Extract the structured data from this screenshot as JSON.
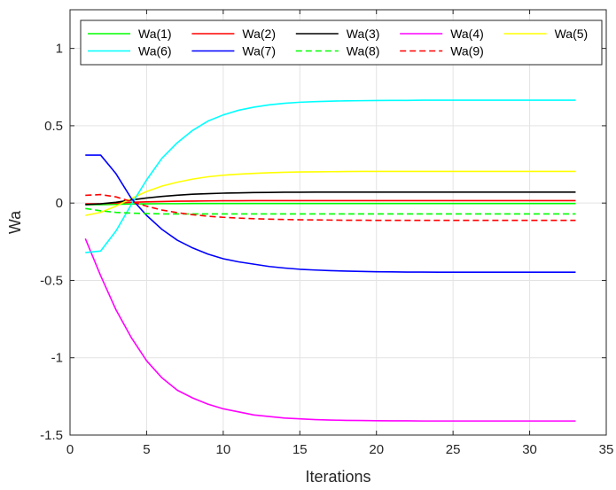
{
  "chart_data": {
    "type": "line",
    "xlabel": "Iterations",
    "ylabel": "Wa",
    "xlim": [
      0,
      35
    ],
    "ylim": [
      -1.5,
      1.25
    ],
    "xticks": [
      "0",
      "5",
      "10",
      "15",
      "20",
      "25",
      "30",
      "35"
    ],
    "yticks": [
      "-1.5",
      "-1",
      "-0.5",
      "0",
      "0.5",
      "1"
    ],
    "grid": true,
    "legend_position": "top",
    "x": [
      1,
      2,
      3,
      4,
      5,
      6,
      7,
      8,
      9,
      10,
      11,
      12,
      13,
      14,
      15,
      16,
      17,
      18,
      19,
      20,
      21,
      22,
      23,
      24,
      25,
      26,
      27,
      28,
      29,
      30,
      31,
      32,
      33
    ],
    "series": [
      {
        "name": "Wa(1)",
        "color": "#00ff00",
        "dash": "solid",
        "values": [
          -0.01,
          -0.01,
          -0.008,
          -0.006,
          -0.005,
          -0.004,
          -0.004,
          -0.003,
          -0.003,
          -0.003,
          -0.003,
          -0.003,
          -0.003,
          -0.003,
          -0.003,
          -0.003,
          -0.003,
          -0.003,
          -0.003,
          -0.003,
          -0.003,
          -0.003,
          -0.003,
          -0.003,
          -0.003,
          -0.003,
          -0.003,
          -0.003,
          -0.003,
          -0.003,
          -0.003,
          -0.003,
          -0.003
        ]
      },
      {
        "name": "Wa(2)",
        "color": "#ff0000",
        "dash": "solid",
        "values": [
          -0.005,
          -0.004,
          0.0,
          0.005,
          0.008,
          0.01,
          0.012,
          0.013,
          0.014,
          0.015,
          0.015,
          0.016,
          0.016,
          0.016,
          0.016,
          0.016,
          0.016,
          0.016,
          0.016,
          0.016,
          0.016,
          0.016,
          0.016,
          0.016,
          0.016,
          0.016,
          0.016,
          0.016,
          0.016,
          0.016,
          0.016,
          0.016,
          0.016
        ]
      },
      {
        "name": "Wa(3)",
        "color": "#000000",
        "dash": "solid",
        "values": [
          -0.01,
          -0.005,
          0.005,
          0.02,
          0.033,
          0.043,
          0.051,
          0.057,
          0.061,
          0.064,
          0.066,
          0.068,
          0.069,
          0.07,
          0.07,
          0.071,
          0.071,
          0.071,
          0.071,
          0.071,
          0.071,
          0.071,
          0.071,
          0.071,
          0.071,
          0.071,
          0.071,
          0.071,
          0.071,
          0.071,
          0.071,
          0.071,
          0.071
        ]
      },
      {
        "name": "Wa(4)",
        "color": "#ff00ff",
        "dash": "solid",
        "values": [
          -0.23,
          -0.47,
          -0.69,
          -0.87,
          -1.02,
          -1.13,
          -1.21,
          -1.26,
          -1.3,
          -1.33,
          -1.35,
          -1.37,
          -1.38,
          -1.39,
          -1.395,
          -1.4,
          -1.403,
          -1.405,
          -1.406,
          -1.407,
          -1.408,
          -1.408,
          -1.409,
          -1.409,
          -1.409,
          -1.409,
          -1.409,
          -1.409,
          -1.409,
          -1.409,
          -1.409,
          -1.409,
          -1.409
        ]
      },
      {
        "name": "Wa(5)",
        "color": "#ffff00",
        "dash": "solid",
        "values": [
          -0.08,
          -0.06,
          -0.02,
          0.03,
          0.075,
          0.11,
          0.135,
          0.155,
          0.17,
          0.18,
          0.187,
          0.192,
          0.196,
          0.199,
          0.201,
          0.202,
          0.203,
          0.204,
          0.205,
          0.205,
          0.205,
          0.205,
          0.205,
          0.205,
          0.205,
          0.205,
          0.205,
          0.205,
          0.205,
          0.205,
          0.205,
          0.205,
          0.205
        ]
      },
      {
        "name": "Wa(6)",
        "color": "#00ffff",
        "dash": "solid",
        "values": [
          -0.32,
          -0.31,
          -0.18,
          -0.01,
          0.15,
          0.29,
          0.39,
          0.47,
          0.53,
          0.57,
          0.6,
          0.62,
          0.635,
          0.645,
          0.652,
          0.656,
          0.659,
          0.661,
          0.662,
          0.663,
          0.664,
          0.664,
          0.665,
          0.665,
          0.665,
          0.665,
          0.665,
          0.665,
          0.665,
          0.665,
          0.665,
          0.665,
          0.665
        ]
      },
      {
        "name": "Wa(7)",
        "color": "#0000ff",
        "dash": "solid",
        "values": [
          0.31,
          0.31,
          0.19,
          0.03,
          -0.08,
          -0.17,
          -0.24,
          -0.29,
          -0.33,
          -0.36,
          -0.38,
          -0.395,
          -0.41,
          -0.42,
          -0.428,
          -0.433,
          -0.437,
          -0.44,
          -0.442,
          -0.444,
          -0.445,
          -0.446,
          -0.446,
          -0.447,
          -0.447,
          -0.447,
          -0.447,
          -0.447,
          -0.447,
          -0.447,
          -0.447,
          -0.447,
          -0.447
        ]
      },
      {
        "name": "Wa(8)",
        "color": "#00ff00",
        "dash": "dashed",
        "values": [
          -0.035,
          -0.05,
          -0.06,
          -0.065,
          -0.068,
          -0.07,
          -0.07,
          -0.07,
          -0.07,
          -0.07,
          -0.07,
          -0.07,
          -0.07,
          -0.07,
          -0.07,
          -0.07,
          -0.07,
          -0.07,
          -0.07,
          -0.07,
          -0.07,
          -0.07,
          -0.07,
          -0.07,
          -0.07,
          -0.07,
          -0.07,
          -0.07,
          -0.07,
          -0.07,
          -0.07,
          -0.07,
          -0.07
        ]
      },
      {
        "name": "Wa(9)",
        "color": "#ff0000",
        "dash": "dashed",
        "values": [
          0.05,
          0.055,
          0.04,
          0.01,
          -0.02,
          -0.045,
          -0.062,
          -0.075,
          -0.085,
          -0.092,
          -0.097,
          -0.101,
          -0.104,
          -0.106,
          -0.108,
          -0.109,
          -0.11,
          -0.111,
          -0.111,
          -0.112,
          -0.112,
          -0.112,
          -0.112,
          -0.112,
          -0.112,
          -0.112,
          -0.112,
          -0.112,
          -0.112,
          -0.112,
          -0.112,
          -0.112,
          -0.112
        ]
      }
    ]
  }
}
